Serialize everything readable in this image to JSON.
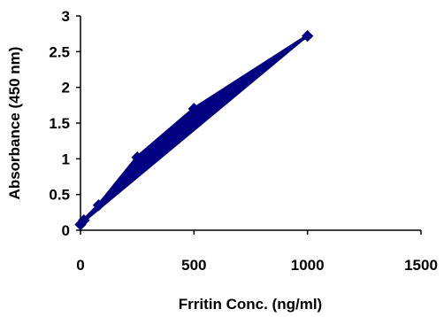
{
  "chart_data": {
    "type": "line",
    "title": "",
    "xlabel": "Frritin Conc. (ng/ml)",
    "ylabel": "Absorbance (450 nm)",
    "xlim": [
      0,
      1500
    ],
    "ylim": [
      0,
      3
    ],
    "x_ticks": [
      "0",
      "500",
      "1000",
      "1500"
    ],
    "y_ticks": [
      "0",
      "0.5",
      "1",
      "1.5",
      "2",
      "2.5",
      "3"
    ],
    "grid": false,
    "legend": "none",
    "series": [
      {
        "marker": "diamond",
        "color": "#000080",
        "points": [
          {
            "x": 0,
            "y": 0.08
          },
          {
            "x": 15,
            "y": 0.14
          },
          {
            "x": 80,
            "y": 0.35
          },
          {
            "x": 250,
            "y": 1.02
          },
          {
            "x": 500,
            "y": 1.7
          },
          {
            "x": 1000,
            "y": 2.72
          }
        ]
      }
    ]
  }
}
